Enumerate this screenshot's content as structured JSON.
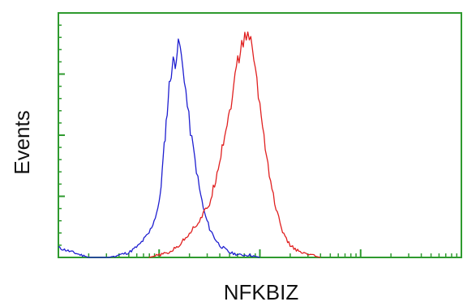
{
  "chart_data": {
    "type": "line",
    "title": "",
    "xlabel": "NFKBIZ",
    "ylabel": "Events",
    "xscale": "log",
    "xlim": [
      0,
      4
    ],
    "ylim": [
      0,
      100
    ],
    "grid": false,
    "legend": null,
    "axis_color": "#2e9a2e",
    "series": [
      {
        "color": "#1f1fd0",
        "x": [
          0.0,
          0.3,
          0.5,
          0.6,
          0.7,
          0.8,
          0.9,
          0.95,
          1.0,
          1.02,
          1.04,
          1.06,
          1.08,
          1.1,
          1.12,
          1.14,
          1.16,
          1.18,
          1.2,
          1.22,
          1.25,
          1.28,
          1.31,
          1.34,
          1.37,
          1.4,
          1.45,
          1.5,
          1.55,
          1.6,
          1.7,
          1.8,
          1.9,
          2.0
        ],
        "y": [
          4,
          0,
          0,
          1,
          2,
          5,
          10,
          15,
          22,
          30,
          40,
          50,
          60,
          70,
          76,
          80,
          80,
          85,
          88,
          82,
          74,
          62,
          52,
          44,
          36,
          28,
          18,
          12,
          8,
          5,
          2,
          1,
          1,
          0
        ]
      },
      {
        "color": "#e02020",
        "x": [
          0.9,
          1.0,
          1.1,
          1.2,
          1.3,
          1.4,
          1.5,
          1.55,
          1.6,
          1.65,
          1.7,
          1.74,
          1.78,
          1.82,
          1.85,
          1.88,
          1.91,
          1.94,
          1.97,
          2.0,
          2.04,
          2.08,
          2.12,
          2.16,
          2.2,
          2.25,
          2.3,
          2.4,
          2.5,
          2.6
        ],
        "y": [
          0,
          1,
          2,
          5,
          10,
          15,
          22,
          30,
          40,
          50,
          60,
          70,
          80,
          86,
          90,
          92,
          88,
          82,
          72,
          62,
          50,
          38,
          28,
          20,
          14,
          8,
          5,
          2,
          1,
          0
        ]
      }
    ]
  }
}
